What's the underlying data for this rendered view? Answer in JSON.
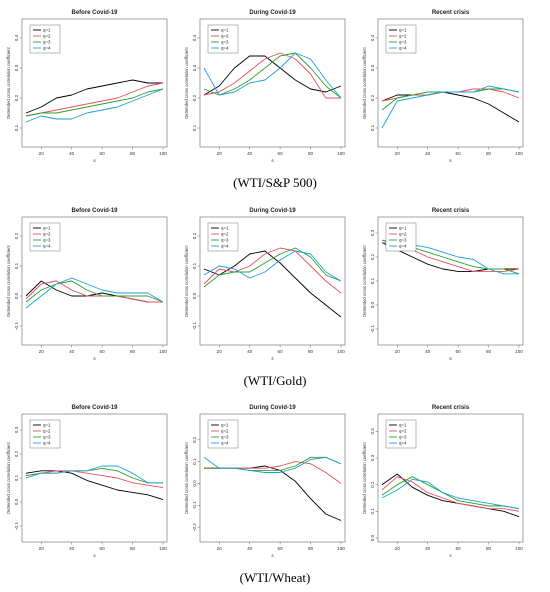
{
  "figure": {
    "row_captions": [
      "(WTI/S&P 500)",
      "(WTI/Gold)",
      "(WTI/Wheat)"
    ],
    "series_colors": [
      "#000000",
      "#e8505b",
      "#2ca02c",
      "#1f9fdc"
    ]
  },
  "chart_data": [
    {
      "type": "line",
      "title": "Before Covid-19",
      "xlabel": "s",
      "ylabel": "Detrended cross correlation coefficient",
      "xlim": [
        10,
        100
      ],
      "ylim": [
        0.05,
        0.45
      ],
      "xticks": [
        20,
        40,
        60,
        80,
        100
      ],
      "yticks": [
        0.1,
        0.2,
        0.3,
        0.4
      ],
      "legend": "top-left",
      "x": [
        10,
        20,
        30,
        40,
        50,
        60,
        70,
        80,
        90,
        100
      ],
      "series": [
        {
          "name": "q=1",
          "values": [
            0.15,
            0.17,
            0.2,
            0.21,
            0.23,
            0.24,
            0.25,
            0.26,
            0.25,
            0.25
          ]
        },
        {
          "name": "q=2",
          "values": [
            0.14,
            0.15,
            0.16,
            0.17,
            0.18,
            0.19,
            0.2,
            0.22,
            0.24,
            0.25
          ]
        },
        {
          "name": "q=3",
          "values": [
            0.14,
            0.15,
            0.15,
            0.16,
            0.17,
            0.18,
            0.19,
            0.2,
            0.22,
            0.23
          ]
        },
        {
          "name": "q=4",
          "values": [
            0.12,
            0.14,
            0.13,
            0.13,
            0.15,
            0.16,
            0.17,
            0.19,
            0.21,
            0.23
          ]
        }
      ]
    },
    {
      "type": "line",
      "title": "During Covid-19",
      "xlabel": "s",
      "ylabel": "Detrended cross correlation coefficient",
      "xlim": [
        10,
        100
      ],
      "ylim": [
        0.05,
        0.45
      ],
      "xticks": [
        20,
        40,
        60,
        80,
        100
      ],
      "yticks": [
        0.1,
        0.2,
        0.3,
        0.4
      ],
      "legend": "top-left",
      "x": [
        10,
        20,
        30,
        40,
        50,
        60,
        70,
        80,
        90,
        100
      ],
      "series": [
        {
          "name": "q=1",
          "values": [
            0.21,
            0.24,
            0.3,
            0.34,
            0.34,
            0.3,
            0.26,
            0.23,
            0.22,
            0.24
          ]
        },
        {
          "name": "q=2",
          "values": [
            0.21,
            0.22,
            0.25,
            0.29,
            0.33,
            0.35,
            0.33,
            0.28,
            0.2,
            0.2
          ]
        },
        {
          "name": "q=3",
          "values": [
            0.23,
            0.21,
            0.23,
            0.26,
            0.3,
            0.34,
            0.35,
            0.3,
            0.24,
            0.2
          ]
        },
        {
          "name": "q=4",
          "values": [
            0.3,
            0.21,
            0.22,
            0.25,
            0.26,
            0.3,
            0.35,
            0.33,
            0.26,
            0.2
          ]
        }
      ]
    },
    {
      "type": "line",
      "title": "Recent crisis",
      "xlabel": "s",
      "ylabel": "Detrended cross correlation coefficient",
      "xlim": [
        10,
        100
      ],
      "ylim": [
        0.05,
        0.45
      ],
      "xticks": [
        20,
        40,
        60,
        80,
        100
      ],
      "yticks": [
        0.1,
        0.2,
        0.3,
        0.4
      ],
      "legend": "top-left",
      "x": [
        10,
        20,
        30,
        40,
        50,
        60,
        70,
        80,
        90,
        100
      ],
      "series": [
        {
          "name": "q=1",
          "values": [
            0.19,
            0.21,
            0.21,
            0.21,
            0.22,
            0.21,
            0.2,
            0.18,
            0.15,
            0.12
          ]
        },
        {
          "name": "q=2",
          "values": [
            0.19,
            0.2,
            0.21,
            0.21,
            0.22,
            0.22,
            0.23,
            0.23,
            0.22,
            0.2
          ]
        },
        {
          "name": "q=3",
          "values": [
            0.16,
            0.2,
            0.21,
            0.22,
            0.22,
            0.22,
            0.22,
            0.23,
            0.23,
            0.22
          ]
        },
        {
          "name": "q=4",
          "values": [
            0.1,
            0.19,
            0.2,
            0.21,
            0.22,
            0.22,
            0.22,
            0.24,
            0.23,
            0.22
          ]
        }
      ]
    },
    {
      "type": "line",
      "title": "Before Covid-19",
      "xlabel": "s",
      "ylabel": "Detrended cross correlation coefficient",
      "xlim": [
        10,
        100
      ],
      "ylim": [
        -0.15,
        0.25
      ],
      "xticks": [
        20,
        40,
        60,
        80,
        100
      ],
      "yticks": [
        -0.1,
        0.0,
        0.1,
        0.2
      ],
      "legend": "top-left",
      "x": [
        10,
        20,
        30,
        40,
        50,
        60,
        70,
        80,
        90,
        100
      ],
      "series": [
        {
          "name": "q=1",
          "values": [
            0.0,
            0.05,
            0.02,
            0.0,
            0.0,
            0.01,
            0.0,
            -0.01,
            -0.02,
            -0.02
          ]
        },
        {
          "name": "q=2",
          "values": [
            -0.01,
            0.04,
            0.05,
            0.02,
            0.0,
            0.0,
            0.0,
            -0.01,
            -0.02,
            -0.02
          ]
        },
        {
          "name": "q=3",
          "values": [
            -0.02,
            0.02,
            0.04,
            0.05,
            0.02,
            0.0,
            0.0,
            0.0,
            0.0,
            -0.02
          ]
        },
        {
          "name": "q=4",
          "values": [
            -0.04,
            0.0,
            0.04,
            0.06,
            0.04,
            0.02,
            0.01,
            0.01,
            0.01,
            -0.02
          ]
        }
      ]
    },
    {
      "type": "line",
      "title": "During Covid-19",
      "xlabel": "s",
      "ylabel": "Detrended cross correlation coefficient",
      "xlim": [
        10,
        100
      ],
      "ylim": [
        -0.15,
        0.25
      ],
      "xticks": [
        20,
        40,
        60,
        80,
        100
      ],
      "yticks": [
        -0.1,
        0.0,
        0.1,
        0.2
      ],
      "legend": "top-left",
      "x": [
        10,
        20,
        30,
        40,
        50,
        60,
        70,
        80,
        90,
        100
      ],
      "series": [
        {
          "name": "q=1",
          "values": [
            0.09,
            0.07,
            0.1,
            0.14,
            0.15,
            0.11,
            0.06,
            0.01,
            -0.03,
            -0.07
          ]
        },
        {
          "name": "q=2",
          "values": [
            0.04,
            0.09,
            0.08,
            0.1,
            0.14,
            0.16,
            0.15,
            0.1,
            0.05,
            0.01
          ]
        },
        {
          "name": "q=3",
          "values": [
            0.03,
            0.07,
            0.08,
            0.08,
            0.11,
            0.14,
            0.16,
            0.13,
            0.07,
            0.05
          ]
        },
        {
          "name": "q=4",
          "values": [
            0.07,
            0.1,
            0.09,
            0.06,
            0.08,
            0.12,
            0.15,
            0.14,
            0.08,
            0.05
          ]
        }
      ]
    },
    {
      "type": "line",
      "title": "Recent crisis",
      "xlabel": "s",
      "ylabel": "Detrended cross correlation coefficient",
      "xlim": [
        10,
        100
      ],
      "ylim": [
        -0.15,
        0.35
      ],
      "xticks": [
        20,
        40,
        60,
        80,
        100
      ],
      "yticks": [
        -0.1,
        0.0,
        0.1,
        0.2,
        0.3
      ],
      "legend": "top-left",
      "x": [
        10,
        20,
        30,
        40,
        50,
        60,
        70,
        80,
        90,
        100
      ],
      "series": [
        {
          "name": "q=1",
          "values": [
            0.26,
            0.23,
            0.2,
            0.17,
            0.15,
            0.14,
            0.14,
            0.15,
            0.15,
            0.15
          ]
        },
        {
          "name": "q=2",
          "values": [
            0.26,
            0.25,
            0.23,
            0.2,
            0.18,
            0.16,
            0.14,
            0.14,
            0.14,
            0.15
          ]
        },
        {
          "name": "q=3",
          "values": [
            0.27,
            0.25,
            0.24,
            0.22,
            0.2,
            0.18,
            0.16,
            0.15,
            0.15,
            0.13
          ]
        },
        {
          "name": "q=4",
          "values": [
            0.27,
            0.26,
            0.25,
            0.24,
            0.22,
            0.2,
            0.19,
            0.15,
            0.13,
            0.13
          ]
        }
      ]
    },
    {
      "type": "line",
      "title": "Before Covid-19",
      "xlabel": "s",
      "ylabel": "Detrended cross correlation coefficient",
      "xlim": [
        10,
        100
      ],
      "ylim": [
        -0.15,
        0.35
      ],
      "xticks": [
        20,
        40,
        60,
        80,
        100
      ],
      "yticks": [
        -0.1,
        0.0,
        0.1,
        0.2,
        0.3
      ],
      "legend": "top-left",
      "x": [
        10,
        20,
        30,
        40,
        50,
        60,
        70,
        80,
        90,
        100
      ],
      "series": [
        {
          "name": "q=1",
          "values": [
            0.12,
            0.13,
            0.13,
            0.12,
            0.09,
            0.07,
            0.05,
            0.04,
            0.03,
            0.01
          ]
        },
        {
          "name": "q=2",
          "values": [
            0.11,
            0.12,
            0.13,
            0.13,
            0.12,
            0.11,
            0.1,
            0.08,
            0.07,
            0.06
          ]
        },
        {
          "name": "q=3",
          "values": [
            0.11,
            0.12,
            0.12,
            0.13,
            0.13,
            0.14,
            0.13,
            0.1,
            0.08,
            0.08
          ]
        },
        {
          "name": "q=4",
          "values": [
            0.1,
            0.12,
            0.12,
            0.13,
            0.13,
            0.15,
            0.15,
            0.12,
            0.08,
            0.08
          ]
        }
      ]
    },
    {
      "type": "line",
      "title": "During Covid-19",
      "xlabel": "s",
      "ylabel": "Detrended cross correlation coefficient",
      "xlim": [
        10,
        100
      ],
      "ylim": [
        -0.25,
        0.3
      ],
      "xticks": [
        20,
        40,
        60,
        80,
        100
      ],
      "yticks": [
        -0.2,
        -0.1,
        0.0,
        0.1,
        0.2
      ],
      "legend": "top-left",
      "x": [
        10,
        20,
        30,
        40,
        50,
        60,
        70,
        80,
        90,
        100
      ],
      "series": [
        {
          "name": "q=1",
          "values": [
            0.07,
            0.07,
            0.07,
            0.07,
            0.08,
            0.06,
            0.01,
            -0.07,
            -0.14,
            -0.17
          ]
        },
        {
          "name": "q=2",
          "values": [
            0.07,
            0.07,
            0.07,
            0.07,
            0.07,
            0.08,
            0.1,
            0.09,
            0.05,
            0.0
          ]
        },
        {
          "name": "q=3",
          "values": [
            0.07,
            0.07,
            0.07,
            0.06,
            0.06,
            0.06,
            0.08,
            0.12,
            0.12,
            0.09
          ]
        },
        {
          "name": "q=4",
          "values": [
            0.12,
            0.07,
            0.07,
            0.06,
            0.05,
            0.05,
            0.07,
            0.11,
            0.12,
            0.09
          ]
        }
      ]
    },
    {
      "type": "line",
      "title": "Recent crisis",
      "xlabel": "s",
      "ylabel": "Detrended cross correlation coefficient",
      "xlim": [
        10,
        100
      ],
      "ylim": [
        0.0,
        0.45
      ],
      "xticks": [
        20,
        40,
        60,
        80,
        100
      ],
      "yticks": [
        0.0,
        0.1,
        0.2,
        0.3,
        0.4
      ],
      "legend": "top-left",
      "x": [
        10,
        20,
        30,
        40,
        50,
        60,
        70,
        80,
        90,
        100
      ],
      "series": [
        {
          "name": "q=1",
          "values": [
            0.2,
            0.24,
            0.19,
            0.16,
            0.14,
            0.13,
            0.12,
            0.11,
            0.1,
            0.08
          ]
        },
        {
          "name": "q=2",
          "values": [
            0.18,
            0.23,
            0.21,
            0.17,
            0.15,
            0.13,
            0.12,
            0.11,
            0.11,
            0.1
          ]
        },
        {
          "name": "q=3",
          "values": [
            0.16,
            0.2,
            0.23,
            0.2,
            0.17,
            0.14,
            0.13,
            0.12,
            0.12,
            0.11
          ]
        },
        {
          "name": "q=4",
          "values": [
            0.15,
            0.18,
            0.22,
            0.21,
            0.17,
            0.15,
            0.14,
            0.13,
            0.12,
            0.11
          ]
        }
      ]
    }
  ]
}
